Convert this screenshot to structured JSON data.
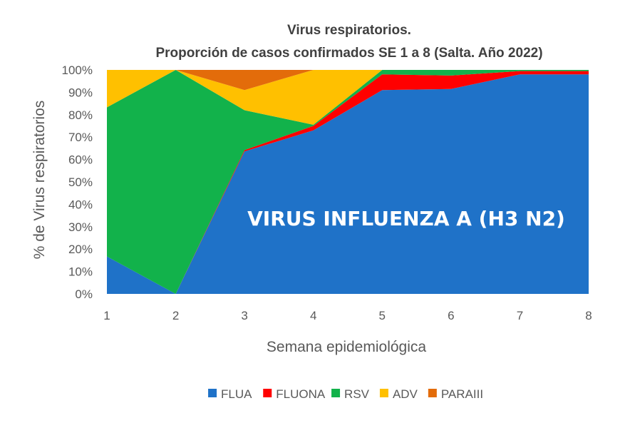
{
  "chart_data": {
    "type": "area",
    "stacked": true,
    "percent": true,
    "title": "Virus respiratorios.",
    "subtitle": "Proporción de casos confirmados SE 1 a 8 (Salta. Año 2022)",
    "xlabel": "Semana epidemiológica",
    "ylabel": "% de Virus respiratorios",
    "x": [
      "1",
      "2",
      "3",
      "4",
      "5",
      "6",
      "7",
      "8"
    ],
    "ylim": [
      0,
      100
    ],
    "y_ticks": [
      "0%",
      "10%",
      "20%",
      "30%",
      "40%",
      "50%",
      "60%",
      "70%",
      "80%",
      "90%",
      "100%"
    ],
    "grid": false,
    "legend_position": "bottom",
    "annotation": "VIRUS INFLUENZA A (H3 N2)",
    "series": [
      {
        "name": "FLUA",
        "color": "#1f72c8",
        "values": [
          16.7,
          0,
          63.6,
          73,
          91,
          91.5,
          98,
          98
        ]
      },
      {
        "name": "FLUONA",
        "color": "#ff0000",
        "values": [
          0,
          0,
          0.6,
          2,
          7,
          6,
          1.5,
          1.5
        ]
      },
      {
        "name": "RSV",
        "color": "#12b24b",
        "values": [
          66.6,
          100,
          17.8,
          0.5,
          2,
          2.5,
          0.5,
          0.5
        ]
      },
      {
        "name": "ADV",
        "color": "#ffc000",
        "values": [
          16.7,
          0,
          9,
          24.5,
          0,
          0,
          0,
          0
        ]
      },
      {
        "name": "PARAIII",
        "color": "#e36c0a",
        "values": [
          0,
          0,
          9,
          0,
          0,
          0,
          0,
          0
        ]
      }
    ]
  }
}
